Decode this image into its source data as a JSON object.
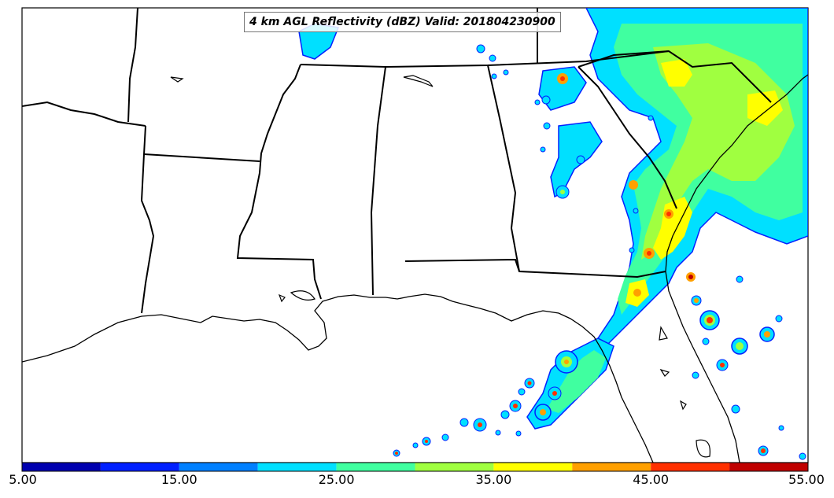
{
  "title": "4 km AGL Reflectivity (dBZ) Valid: 201804230900",
  "colorbar": {
    "tick_labels": [
      "5.00",
      "15.00",
      "25.00",
      "35.00",
      "45.00",
      "55.00"
    ],
    "colors": [
      "#0000b0",
      "#0020ff",
      "#0080ff",
      "#00e0ff",
      "#40ffa0",
      "#a0ff40",
      "#ffff00",
      "#ffa000",
      "#ff3000",
      "#c00000"
    ]
  },
  "palette": {
    "light_blue": "#00e0ff",
    "blue": "#0080ff",
    "dark_blue": "#0020ff",
    "green": "#40ffa0",
    "lime": "#a0ff40",
    "yellow": "#ffff00",
    "orange": "#ffa000",
    "red": "#ff3000"
  }
}
